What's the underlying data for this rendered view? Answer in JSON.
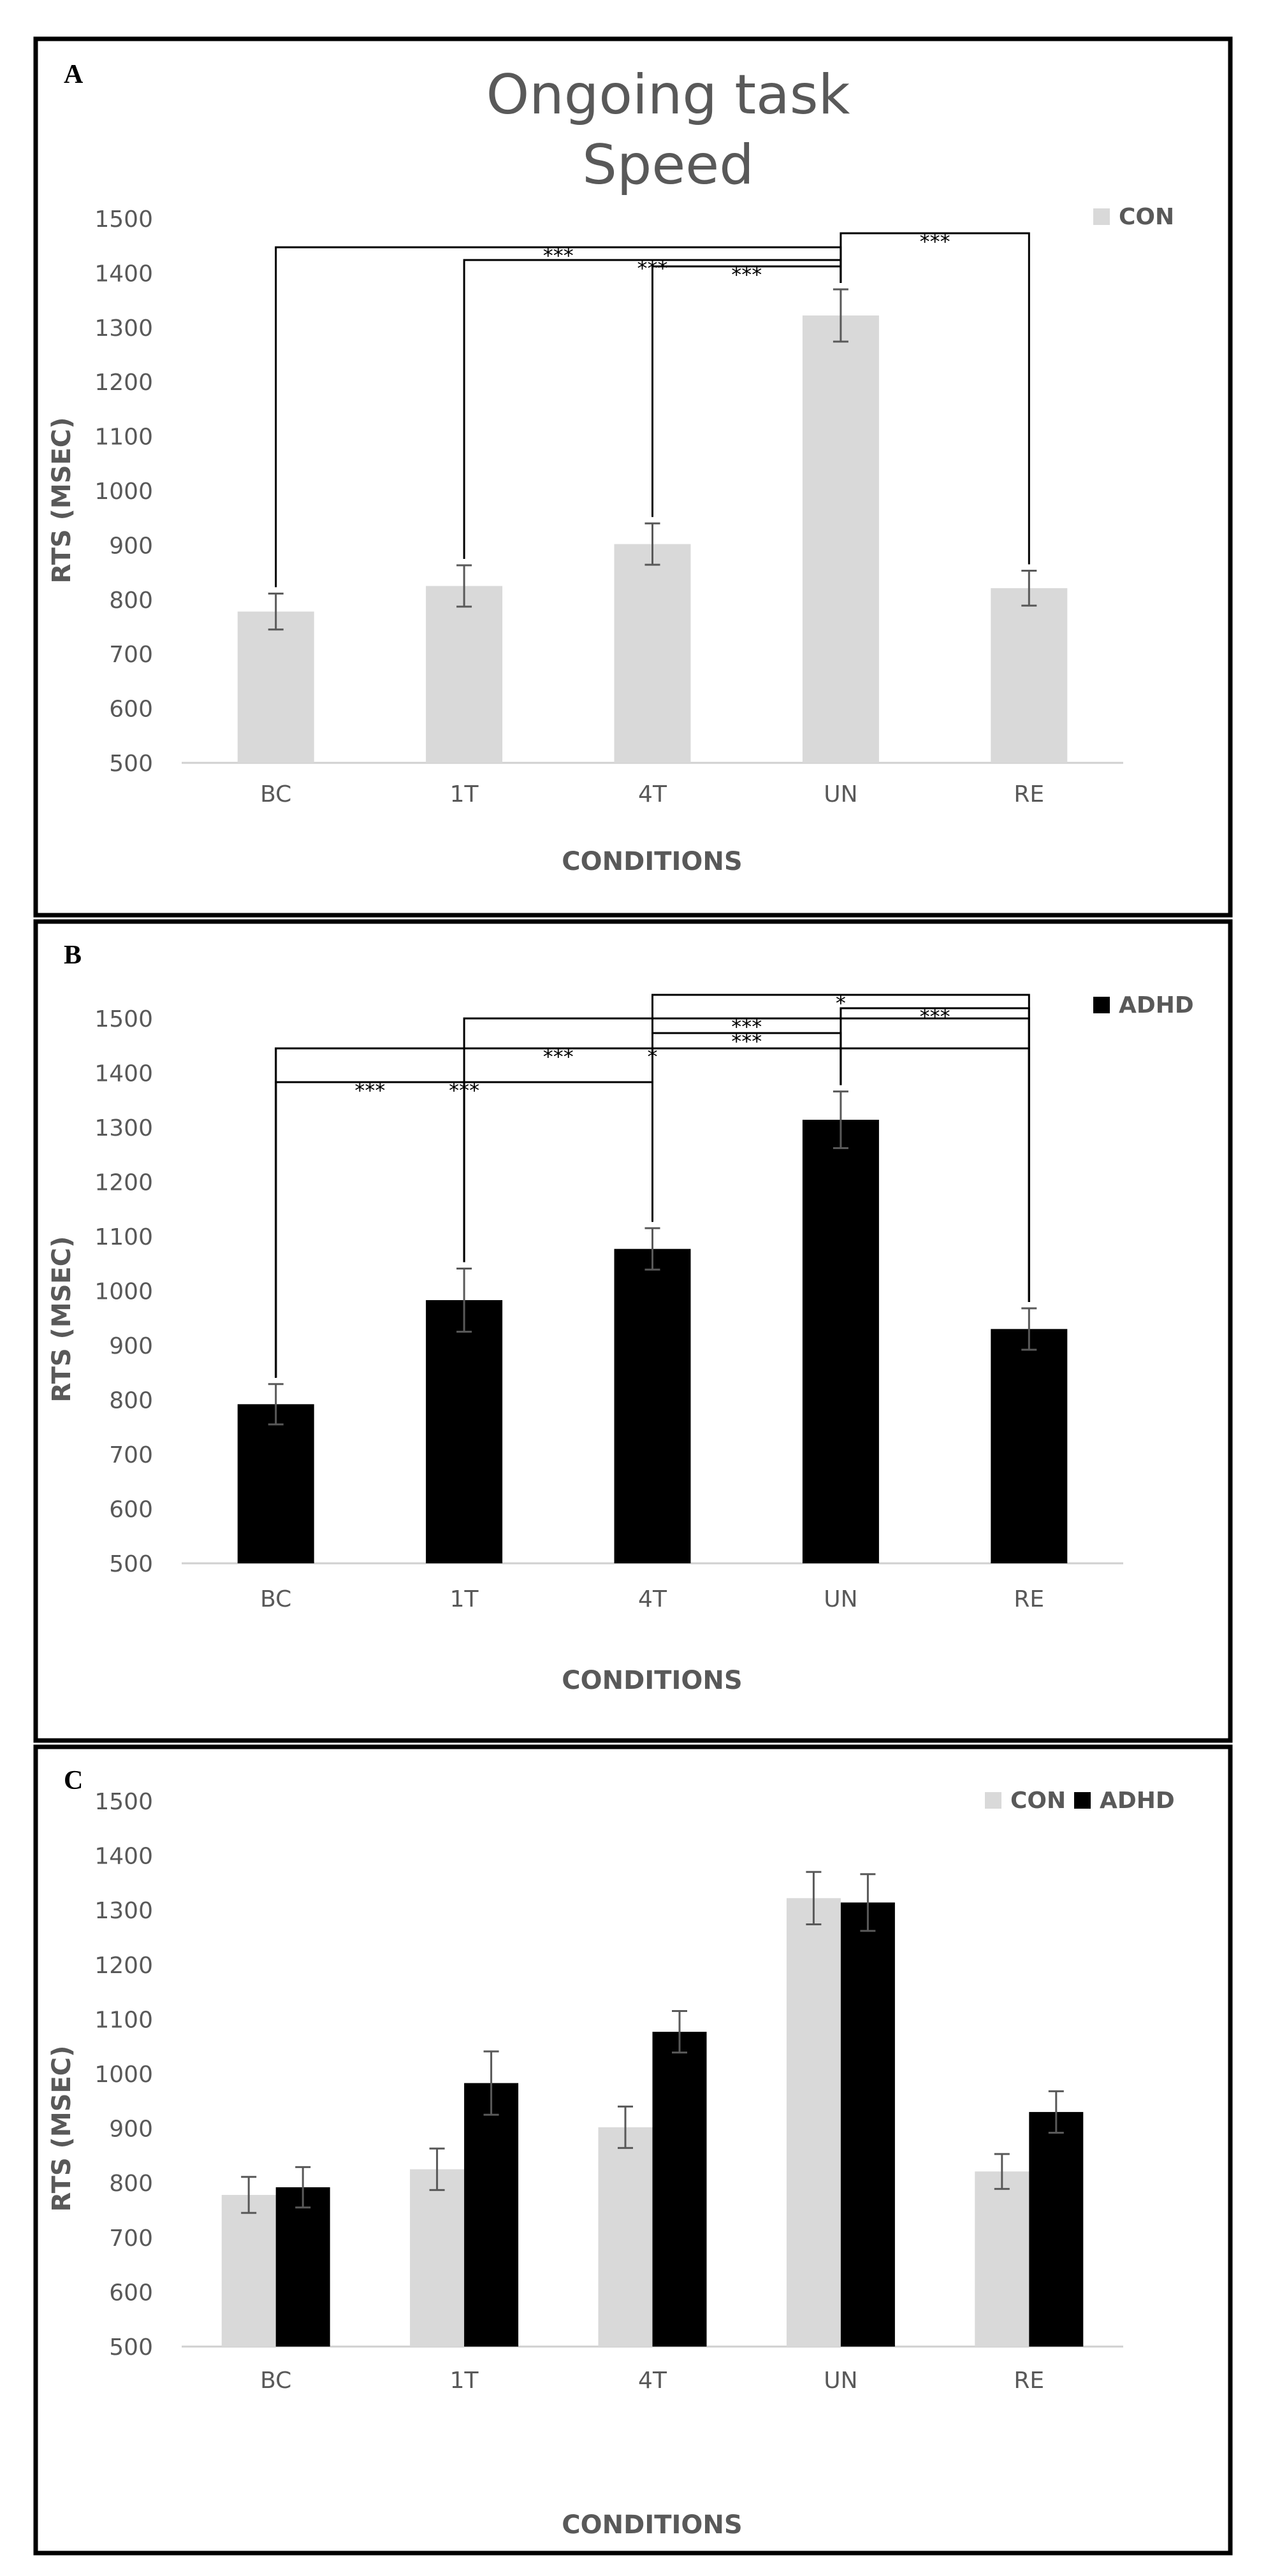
{
  "figure": {
    "title_line1": "Ongoing task",
    "title_line2": "Speed"
  },
  "colors": {
    "con": "#d9d9d9",
    "adhd": "#000000",
    "axis": "#d0d0d0",
    "text": "#595959",
    "frame": "#000000",
    "bracket": "#000000"
  },
  "chart_data": [
    {
      "type": "bar",
      "panel_label": "A",
      "title": "Ongoing task Speed",
      "xlabel": "CONDITIONS",
      "ylabel": "RTS (MSEC)",
      "ylim": [
        500,
        1500
      ],
      "yticks": [
        500,
        600,
        700,
        800,
        900,
        1000,
        1100,
        1200,
        1300,
        1400,
        1500
      ],
      "categories": [
        "BC",
        "1T",
        "4T",
        "UN",
        "RE"
      ],
      "legend_position": "top-right",
      "series": [
        {
          "name": "CON",
          "color_key": "con",
          "values": [
            778,
            825,
            902,
            1322,
            821
          ],
          "errors": [
            33,
            38,
            38,
            48,
            32
          ]
        }
      ],
      "comparisons": [
        {
          "from": "UN",
          "to": "BC",
          "label": "***"
        },
        {
          "from": "UN",
          "to": "1T",
          "label": "***"
        },
        {
          "from": "UN",
          "to": "4T",
          "label": "***"
        },
        {
          "from": "UN",
          "to": "RE",
          "label": "***"
        }
      ]
    },
    {
      "type": "bar",
      "panel_label": "B",
      "xlabel": "CONDITIONS",
      "ylabel": "RTS (MSEC)",
      "ylim": [
        500,
        1500
      ],
      "yticks": [
        500,
        600,
        700,
        800,
        900,
        1000,
        1100,
        1200,
        1300,
        1400,
        1500
      ],
      "categories": [
        "BC",
        "1T",
        "4T",
        "UN",
        "RE"
      ],
      "legend_position": "top-right",
      "series": [
        {
          "name": "ADHD",
          "color_key": "adhd",
          "values": [
            792,
            983,
            1077,
            1314,
            930
          ],
          "errors": [
            37,
            58,
            38,
            52,
            38
          ]
        }
      ],
      "comparisons": [
        {
          "from": "4T",
          "to": "RE",
          "label": "*"
        },
        {
          "from": "1T",
          "to": "RE",
          "label": "***"
        },
        {
          "from": "4T",
          "to": "UN",
          "label": "***"
        },
        {
          "from": "UN",
          "to": "RE",
          "label": "***"
        },
        {
          "from": "BC",
          "to": "UN",
          "label": "***"
        },
        {
          "from": "BC",
          "to": "RE",
          "label": "*"
        },
        {
          "from": "BC",
          "to": "1T",
          "label": "***"
        },
        {
          "from": "BC",
          "to": "4T",
          "label": "***"
        }
      ]
    },
    {
      "type": "bar",
      "panel_label": "C",
      "xlabel": "CONDITIONS",
      "ylabel": "RTS (MSEC)",
      "ylim": [
        500,
        1500
      ],
      "yticks": [
        500,
        600,
        700,
        800,
        900,
        1000,
        1100,
        1200,
        1300,
        1400,
        1500
      ],
      "categories": [
        "BC",
        "1T",
        "4T",
        "UN",
        "RE"
      ],
      "legend_position": "top-right",
      "series": [
        {
          "name": "CON",
          "color_key": "con",
          "values": [
            778,
            825,
            902,
            1322,
            821
          ],
          "errors": [
            33,
            38,
            38,
            48,
            32
          ]
        },
        {
          "name": "ADHD",
          "color_key": "adhd",
          "values": [
            792,
            983,
            1077,
            1314,
            930
          ],
          "errors": [
            37,
            58,
            38,
            52,
            38
          ]
        }
      ],
      "comparisons": []
    }
  ]
}
